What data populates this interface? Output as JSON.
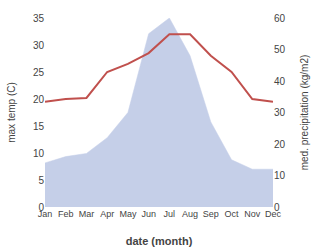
{
  "chart_data": {
    "type": "line",
    "xlabel": "date (month)",
    "ylabel": "max temp (C)",
    "y2label": "med. precipitation (kg/m2)",
    "categories": [
      "Jan",
      "Feb",
      "Mar",
      "Apr",
      "May",
      "Jun",
      "Jul",
      "Aug",
      "Sep",
      "Oct",
      "Nov",
      "Dec"
    ],
    "series": [
      {
        "type": "area",
        "axis": "y2",
        "color": "#c5cfe8",
        "values": [
          14,
          16,
          17,
          22,
          30,
          55,
          60,
          48,
          27,
          15,
          12,
          12
        ]
      },
      {
        "type": "line",
        "color": "#c0504d",
        "values": [
          19.5,
          20.0,
          20.2,
          25.0,
          26.5,
          28.5,
          32.0,
          32.0,
          28.0,
          25.0,
          20.0,
          19.5
        ]
      }
    ],
    "ylim": [
      0,
      35
    ],
    "yticks": [
      0,
      5,
      10,
      15,
      20,
      25,
      30,
      35
    ],
    "y2lim": [
      0,
      60
    ],
    "y2ticks": [
      0,
      10,
      20,
      30,
      40,
      50,
      60
    ],
    "grid": false
  }
}
